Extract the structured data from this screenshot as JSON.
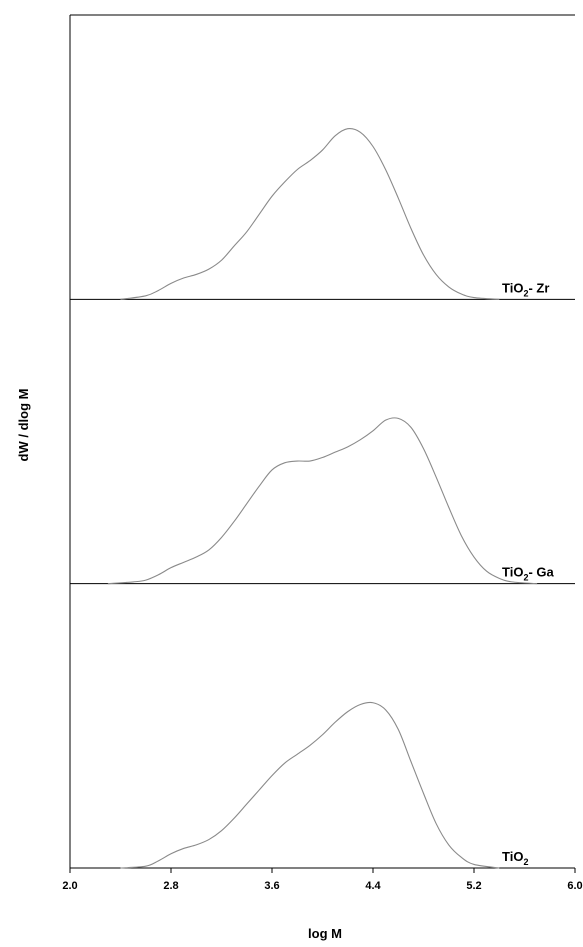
{
  "chart_data": {
    "type": "line",
    "xlabel": "log M",
    "ylabel": "dW / dlog M",
    "xlim": [
      2.0,
      6.0
    ],
    "x_ticks": [
      "2.0",
      "2.8",
      "3.6",
      "4.4",
      "5.2",
      "6.0"
    ],
    "grid": false,
    "legend": "none",
    "stacked_panels": true,
    "series": [
      {
        "name": "TiO2- Zr",
        "label_main": "TiO",
        "label_sub": "2",
        "label_tail": "- Zr",
        "color": "#8a8a8a",
        "points": [
          [
            2.4,
            0.0
          ],
          [
            2.6,
            0.02
          ],
          [
            2.7,
            0.05
          ],
          [
            2.8,
            0.09
          ],
          [
            2.9,
            0.12
          ],
          [
            3.0,
            0.14
          ],
          [
            3.1,
            0.17
          ],
          [
            3.2,
            0.22
          ],
          [
            3.3,
            0.3
          ],
          [
            3.4,
            0.38
          ],
          [
            3.5,
            0.48
          ],
          [
            3.6,
            0.58
          ],
          [
            3.7,
            0.66
          ],
          [
            3.8,
            0.73
          ],
          [
            3.9,
            0.78
          ],
          [
            4.0,
            0.84
          ],
          [
            4.1,
            0.92
          ],
          [
            4.2,
            0.96
          ],
          [
            4.3,
            0.94
          ],
          [
            4.4,
            0.86
          ],
          [
            4.5,
            0.73
          ],
          [
            4.6,
            0.57
          ],
          [
            4.7,
            0.4
          ],
          [
            4.8,
            0.25
          ],
          [
            4.9,
            0.14
          ],
          [
            5.0,
            0.07
          ],
          [
            5.1,
            0.03
          ],
          [
            5.2,
            0.01
          ],
          [
            5.4,
            0.0
          ]
        ]
      },
      {
        "name": "TiO2- Ga",
        "label_main": "TiO",
        "label_sub": "2",
        "label_tail": "- Ga",
        "color": "#8a8a8a",
        "points": [
          [
            2.3,
            0.0
          ],
          [
            2.5,
            0.01
          ],
          [
            2.6,
            0.02
          ],
          [
            2.7,
            0.05
          ],
          [
            2.8,
            0.09
          ],
          [
            2.9,
            0.12
          ],
          [
            3.0,
            0.15
          ],
          [
            3.1,
            0.19
          ],
          [
            3.2,
            0.26
          ],
          [
            3.3,
            0.35
          ],
          [
            3.4,
            0.45
          ],
          [
            3.5,
            0.55
          ],
          [
            3.6,
            0.64
          ],
          [
            3.7,
            0.68
          ],
          [
            3.8,
            0.69
          ],
          [
            3.9,
            0.69
          ],
          [
            4.0,
            0.71
          ],
          [
            4.1,
            0.74
          ],
          [
            4.2,
            0.77
          ],
          [
            4.3,
            0.81
          ],
          [
            4.4,
            0.86
          ],
          [
            4.5,
            0.92
          ],
          [
            4.6,
            0.93
          ],
          [
            4.7,
            0.88
          ],
          [
            4.8,
            0.76
          ],
          [
            4.9,
            0.6
          ],
          [
            5.0,
            0.43
          ],
          [
            5.1,
            0.27
          ],
          [
            5.2,
            0.15
          ],
          [
            5.3,
            0.07
          ],
          [
            5.4,
            0.03
          ],
          [
            5.5,
            0.01
          ],
          [
            5.7,
            0.0
          ]
        ]
      },
      {
        "name": "TiO2",
        "label_main": "TiO",
        "label_sub": "2",
        "label_tail": "",
        "color": "#8a8a8a",
        "points": [
          [
            2.4,
            0.0
          ],
          [
            2.6,
            0.01
          ],
          [
            2.7,
            0.04
          ],
          [
            2.8,
            0.08
          ],
          [
            2.9,
            0.11
          ],
          [
            3.0,
            0.13
          ],
          [
            3.1,
            0.16
          ],
          [
            3.2,
            0.21
          ],
          [
            3.3,
            0.28
          ],
          [
            3.4,
            0.36
          ],
          [
            3.5,
            0.44
          ],
          [
            3.6,
            0.52
          ],
          [
            3.7,
            0.59
          ],
          [
            3.8,
            0.64
          ],
          [
            3.9,
            0.69
          ],
          [
            4.0,
            0.75
          ],
          [
            4.1,
            0.82
          ],
          [
            4.2,
            0.88
          ],
          [
            4.3,
            0.92
          ],
          [
            4.4,
            0.93
          ],
          [
            4.5,
            0.89
          ],
          [
            4.6,
            0.78
          ],
          [
            4.7,
            0.6
          ],
          [
            4.8,
            0.42
          ],
          [
            4.9,
            0.25
          ],
          [
            5.0,
            0.13
          ],
          [
            5.1,
            0.06
          ],
          [
            5.2,
            0.02
          ],
          [
            5.4,
            0.0
          ]
        ]
      }
    ]
  }
}
